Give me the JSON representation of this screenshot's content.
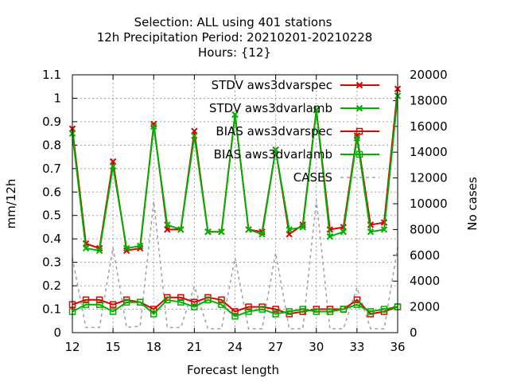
{
  "chart_data": {
    "type": "line",
    "title": [
      "Selection: ALL using   401 stations",
      "12h Precipitation    Period: 20210201-20210228",
      "Hours: {12}"
    ],
    "xlabel": "Forecast length",
    "ylabel": "mm/12h",
    "y2label": "No cases",
    "xlim": [
      12,
      36
    ],
    "ylim": [
      0,
      1.1
    ],
    "y2lim": [
      0,
      20000
    ],
    "xticks": [
      12,
      15,
      18,
      21,
      24,
      27,
      30,
      33,
      36
    ],
    "yticks": [
      0,
      0.1,
      0.2,
      0.3,
      0.4,
      0.5,
      0.6,
      0.7,
      0.8,
      0.9,
      1,
      1.1
    ],
    "y2ticks": [
      0,
      2000,
      4000,
      6000,
      8000,
      10000,
      12000,
      14000,
      16000,
      18000,
      20000
    ],
    "grid": true,
    "legend_position": "top-right",
    "x": [
      12,
      13,
      14,
      15,
      16,
      17,
      18,
      19,
      20,
      21,
      22,
      23,
      24,
      25,
      26,
      27,
      28,
      29,
      30,
      31,
      32,
      33,
      34,
      35,
      36
    ],
    "series": [
      {
        "name": "STDV aws3dvarspec",
        "color": "#e00000",
        "marker": "x",
        "axis": "y",
        "values": [
          0.87,
          0.38,
          0.36,
          0.73,
          0.35,
          0.36,
          0.89,
          0.44,
          0.44,
          0.86,
          0.43,
          0.43,
          0.93,
          0.44,
          0.43,
          0.78,
          0.42,
          0.46,
          0.95,
          0.44,
          0.45,
          0.84,
          0.46,
          0.47,
          1.04
        ]
      },
      {
        "name": "STDV aws3dvarlamb",
        "color": "#00b000",
        "marker": "x",
        "axis": "y",
        "values": [
          0.85,
          0.36,
          0.35,
          0.71,
          0.36,
          0.37,
          0.88,
          0.46,
          0.44,
          0.84,
          0.43,
          0.43,
          0.93,
          0.44,
          0.42,
          0.78,
          0.44,
          0.45,
          0.95,
          0.41,
          0.43,
          0.83,
          0.43,
          0.44,
          1.01
        ]
      },
      {
        "name": "BIAS aws3dvarspec",
        "color": "#e00000",
        "marker": "square",
        "axis": "y",
        "values": [
          0.12,
          0.14,
          0.14,
          0.12,
          0.14,
          0.13,
          0.1,
          0.15,
          0.15,
          0.13,
          0.15,
          0.14,
          0.09,
          0.11,
          0.11,
          0.1,
          0.08,
          0.09,
          0.1,
          0.1,
          0.1,
          0.14,
          0.08,
          0.09,
          0.11
        ]
      },
      {
        "name": "BIAS aws3dvarlamb",
        "color": "#00b000",
        "marker": "square",
        "axis": "y",
        "values": [
          0.09,
          0.12,
          0.12,
          0.09,
          0.13,
          0.13,
          0.08,
          0.14,
          0.13,
          0.11,
          0.14,
          0.12,
          0.07,
          0.09,
          0.1,
          0.08,
          0.09,
          0.1,
          0.09,
          0.09,
          0.1,
          0.12,
          0.09,
          0.1,
          0.11
        ]
      },
      {
        "name": "CASES",
        "color": "#a0a0a0",
        "marker": "none",
        "dash": true,
        "axis": "y2",
        "values": [
          5800,
          400,
          400,
          6600,
          400,
          500,
          10200,
          400,
          400,
          3600,
          300,
          300,
          5800,
          300,
          300,
          6200,
          300,
          300,
          10300,
          300,
          300,
          3500,
          300,
          300,
          6600
        ]
      }
    ]
  }
}
